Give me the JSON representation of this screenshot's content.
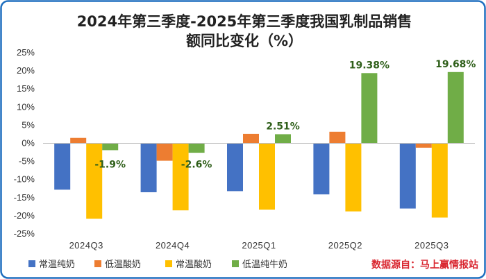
{
  "chart_data": {
    "type": "bar",
    "title_line1": "2024年第三季度-2025年第三季度我国乳制品销售",
    "title_line2": "额同比变化（%）",
    "categories": [
      "2024Q3",
      "2024Q4",
      "2025Q1",
      "2025Q2",
      "2025Q3"
    ],
    "series": [
      {
        "name": "常温纯奶",
        "color": "#4472c4",
        "values": [
          -12.8,
          -13.5,
          -13.2,
          -14.1,
          -18.0
        ]
      },
      {
        "name": "低温酸奶",
        "color": "#ed7d31",
        "values": [
          1.5,
          -4.8,
          2.6,
          3.2,
          -1.2
        ]
      },
      {
        "name": "常温酸奶",
        "color": "#ffc000",
        "values": [
          -20.8,
          -18.5,
          -18.3,
          -18.8,
          -20.5
        ]
      },
      {
        "name": "低温纯牛奶",
        "color": "#70ad47",
        "values": [
          -1.9,
          -2.6,
          2.51,
          19.38,
          19.68
        ]
      }
    ],
    "data_labels": [
      "-1.9%",
      "-2.6%",
      "2.51%",
      "19.38%",
      "19.68%"
    ],
    "labeled_series": "低温纯牛奶",
    "ylim": [
      -25,
      25
    ],
    "yticks": [
      25,
      20,
      15,
      10,
      5,
      0,
      -5,
      -10,
      -15,
      -20,
      -25
    ],
    "ytick_labels": [
      "25%",
      "20%",
      "15%",
      "10%",
      "5%",
      "0%",
      "-5%",
      "-10%",
      "-15%",
      "-20%",
      "-25%"
    ],
    "grid": false,
    "legend_position": "bottom-left"
  },
  "source_text": "数据源自：马上赢情报站",
  "colors": {
    "border": "#1f6fbf",
    "axis": "#bfbfbf",
    "label_green": "#2f5f1a",
    "source_red": "#d9262f"
  }
}
